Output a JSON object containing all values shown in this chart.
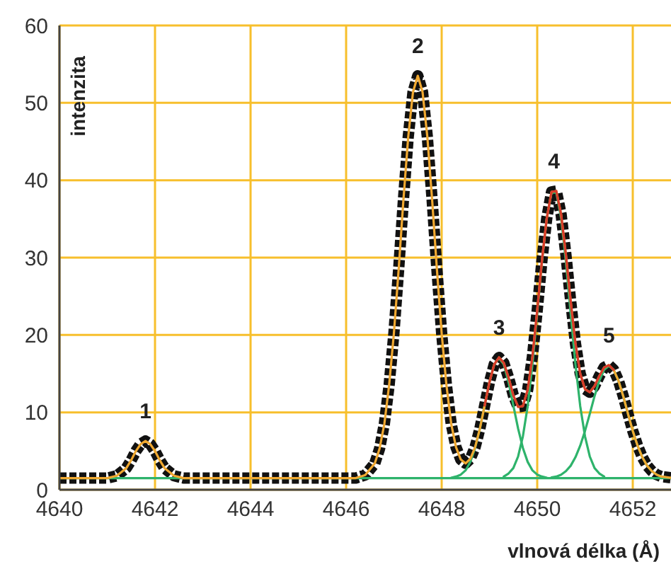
{
  "chart_data": {
    "type": "line",
    "xlabel": "vlnová délka (Å)",
    "ylabel": "intenzita",
    "xlim": [
      4640,
      4652.8
    ],
    "xticks": [
      4640,
      4642,
      4644,
      4646,
      4648,
      4650,
      4652
    ],
    "ylim": [
      0,
      60
    ],
    "yticks": [
      0,
      10,
      20,
      30,
      40,
      50,
      60
    ],
    "grid": true,
    "legend": false,
    "marker": "none",
    "series": [
      {
        "color": "#111111",
        "line_style": "dashed",
        "x": [
          4640,
          4641,
          4641.2,
          4641.4,
          4641.5,
          4641.6,
          4641.7,
          4641.8,
          4641.9,
          4642,
          4642.1,
          4642.2,
          4642.4,
          4642.6,
          4644,
          4646,
          4646.2,
          4646.4,
          4646.6,
          4646.7,
          4646.8,
          4646.9,
          4647,
          4647.1,
          4647.2,
          4647.3,
          4647.4,
          4647.5,
          4647.6,
          4647.7,
          4647.8,
          4647.9,
          4648,
          4648.1,
          4648.2,
          4648.3,
          4648.4,
          4648.5,
          4648.6,
          4648.7,
          4648.8,
          4648.9,
          4649,
          4649.1,
          4649.2,
          4649.3,
          4649.4,
          4649.5,
          4649.6,
          4649.7,
          4649.8,
          4649.9,
          4650,
          4650.1,
          4650.2,
          4650.3,
          4650.4,
          4650.5,
          4650.6,
          4650.7,
          4650.8,
          4650.9,
          4651,
          4651.1,
          4651.2,
          4651.3,
          4651.4,
          4651.5,
          4651.6,
          4651.7,
          4651.8,
          4651.9,
          4652,
          4652.1,
          4652.2,
          4652.3,
          4652.4,
          4652.5,
          4652.6,
          4652.8
        ],
        "values": [
          1.5,
          1.5,
          1.8,
          2.8,
          3.8,
          5,
          5.9,
          6.3,
          5.9,
          5,
          3.8,
          2.8,
          1.8,
          1.5,
          1.5,
          1.5,
          1.5,
          1.9,
          3.4,
          5.3,
          8.5,
          13.5,
          20.2,
          28.5,
          37.5,
          45.6,
          51.4,
          53.5,
          51.4,
          45.6,
          37.5,
          28.5,
          20.2,
          13.5,
          8.5,
          5.5,
          3.9,
          3.4,
          4,
          5.5,
          7.9,
          10.9,
          13.9,
          16.2,
          17.1,
          16.4,
          14.5,
          12.2,
          10.7,
          10.8,
          12.9,
          17.2,
          23.2,
          29.7,
          35.1,
          38.5,
          38.6,
          35.6,
          30.4,
          24.4,
          18.9,
          15,
          13,
          12.6,
          13.4,
          14.7,
          15.8,
          16.1,
          15.5,
          14.1,
          12.1,
          9.8,
          7.6,
          5.7,
          4.2,
          3.1,
          2.4,
          1.95,
          1.7,
          1.55
        ]
      },
      {
        "color": "#2eb36b",
        "line_style": "solid",
        "x": [
          4640,
          4652.8
        ],
        "values": [
          1.5,
          1.5
        ]
      },
      {
        "color": "#2eb36b",
        "line_style": "solid",
        "x": [
          4648.2,
          4648.3,
          4648.4,
          4648.5,
          4648.6,
          4648.7,
          4648.8,
          4648.9,
          4649,
          4649.1,
          4649.2,
          4649.3,
          4649.4,
          4649.5,
          4649.6,
          4649.7,
          4649.8,
          4649.9,
          4650,
          4650.1,
          4650.2
        ],
        "values": [
          1.56,
          1.7,
          1.95,
          2.5,
          3.6,
          5.4,
          7.9,
          10.9,
          13.9,
          16.2,
          17,
          16.2,
          13.9,
          10.9,
          7.9,
          5.4,
          3.6,
          2.5,
          1.95,
          1.7,
          1.56
        ]
      },
      {
        "color": "#2eb36b",
        "line_style": "solid",
        "x": [
          4649.3,
          4649.4,
          4649.5,
          4649.6,
          4649.7,
          4649.8,
          4649.9,
          4650,
          4650.1,
          4650.2,
          4650.3,
          4650.4,
          4650.5,
          4650.6,
          4650.7,
          4650.8,
          4650.9,
          4651,
          4651.1,
          4651.2,
          4651.3,
          4651.4
        ],
        "values": [
          1.7,
          2.1,
          2.8,
          4.3,
          6.9,
          10.8,
          16.2,
          22.8,
          29.5,
          35.1,
          38.4,
          38.4,
          35.1,
          29.5,
          22.8,
          16.2,
          10.8,
          6.9,
          4.3,
          2.8,
          2.1,
          1.7
        ]
      },
      {
        "color": "#2eb36b",
        "line_style": "solid",
        "x": [
          4650.3,
          4650.4,
          4650.5,
          4650.6,
          4650.7,
          4650.8,
          4650.9,
          4651,
          4651.1,
          4651.2,
          4651.3,
          4651.4,
          4651.5,
          4651.6,
          4651.7,
          4651.8,
          4651.9,
          4652,
          4652.1,
          4652.2,
          4652.3,
          4652.4,
          4652.5,
          4652.6,
          4652.7
        ],
        "values": [
          1.6,
          1.7,
          1.95,
          2.4,
          3.1,
          4.2,
          5.7,
          7.6,
          9.8,
          12.1,
          14.1,
          15.5,
          16,
          15.5,
          14.1,
          12.1,
          9.8,
          7.6,
          5.7,
          4.2,
          3.1,
          2.4,
          1.95,
          1.7,
          1.6
        ]
      },
      {
        "color": "#f0a830",
        "line_style": "solid",
        "x": [
          4640,
          4641,
          4641.2,
          4641.4,
          4641.5,
          4641.6,
          4641.7,
          4641.8,
          4641.9,
          4642,
          4642.1,
          4642.2,
          4642.4,
          4642.6,
          4644,
          4646,
          4646.2,
          4646.4,
          4646.6,
          4646.7,
          4646.8,
          4646.9,
          4647,
          4647.1,
          4647.2,
          4647.3,
          4647.4,
          4647.5,
          4647.6,
          4647.7,
          4647.8,
          4647.9,
          4648,
          4648.1,
          4648.2,
          4648.3,
          4648.4,
          4648.5,
          4648.6,
          4648.7,
          4648.8,
          4648.9,
          4649,
          4649.1,
          4649.2,
          4649.3,
          4649.4,
          4649.5,
          4649.6,
          4649.7,
          4649.8,
          4649.9,
          4650,
          4650.1,
          4650.2,
          4650.3,
          4650.4,
          4650.5,
          4650.6,
          4650.7,
          4650.8,
          4650.9,
          4651,
          4651.1,
          4651.2,
          4651.3,
          4651.4,
          4651.5,
          4651.6,
          4651.7,
          4651.8,
          4651.9,
          4652,
          4652.1,
          4652.2,
          4652.3,
          4652.4,
          4652.5,
          4652.6,
          4652.8
        ],
        "values": [
          1.5,
          1.5,
          1.8,
          2.8,
          3.8,
          5,
          5.9,
          6.3,
          5.9,
          5,
          3.8,
          2.8,
          1.8,
          1.5,
          1.5,
          1.5,
          1.5,
          1.9,
          3.4,
          5.3,
          8.5,
          13.5,
          20.2,
          28.5,
          37.5,
          45.6,
          51.4,
          53.5,
          51.4,
          45.6,
          37.5,
          28.5,
          20.2,
          13.5,
          8.5,
          5.5,
          3.9,
          3.4,
          4,
          5.5,
          7.9,
          10.9,
          13.9,
          16.2,
          17.1,
          16.4,
          14.5,
          12.2,
          10.7,
          10.8,
          12.9,
          17.2,
          23.2,
          29.7,
          35.1,
          38.5,
          38.6,
          35.6,
          30.4,
          24.4,
          18.9,
          15,
          13,
          12.6,
          13.4,
          14.7,
          15.8,
          16.1,
          15.5,
          14.1,
          12.1,
          9.8,
          7.6,
          5.7,
          4.2,
          3.1,
          2.4,
          1.95,
          1.7,
          1.55
        ]
      },
      {
        "color": "#d83a2a",
        "line_style": "solid",
        "x": [
          4648.9,
          4649,
          4649.1,
          4649.2,
          4649.3,
          4649.4,
          4649.5,
          4649.6,
          4649.7,
          4649.8,
          4649.9,
          4650,
          4650.1,
          4650.2,
          4650.3,
          4650.4,
          4650.5,
          4650.6,
          4650.7,
          4650.8,
          4650.9,
          4651,
          4651.1,
          4651.2,
          4651.3,
          4651.4,
          4651.5,
          4651.6
        ],
        "values": [
          10.9,
          13.9,
          16.2,
          17.1,
          16.4,
          14.5,
          12.2,
          10.7,
          10.8,
          12.9,
          17.2,
          23.2,
          29.7,
          35.1,
          38.5,
          38.6,
          35.6,
          30.4,
          24.4,
          18.9,
          15,
          13,
          12.6,
          13.4,
          14.7,
          15.8,
          16.1,
          15.5
        ]
      }
    ],
    "annotations": [
      {
        "text": "1",
        "x": 4641.8,
        "y": 6.3
      },
      {
        "text": "2",
        "x": 4647.5,
        "y": 53.5
      },
      {
        "text": "3",
        "x": 4649.2,
        "y": 17.1
      },
      {
        "text": "4",
        "x": 4650.35,
        "y": 38.6
      },
      {
        "text": "5",
        "x": 4651.5,
        "y": 16.1
      }
    ]
  }
}
